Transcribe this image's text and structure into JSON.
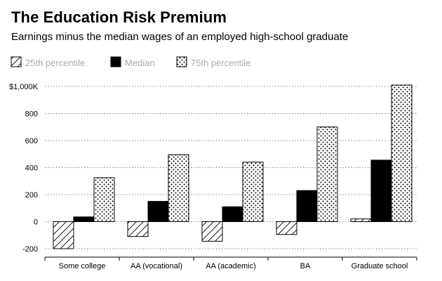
{
  "header": {
    "title": "The Education Risk Premium",
    "subtitle": "Earnings minus the median wages of an employed high-school graduate"
  },
  "chart_data": {
    "type": "bar",
    "title": "The Education Risk Premium",
    "subtitle": "Earnings minus the median wages of an employed high-school graduate",
    "categories": [
      "Some college",
      "AA (vocational)",
      "AA (academic)",
      "BA",
      "Graduate school"
    ],
    "series": [
      {
        "name": "25th percentile",
        "pattern": "hatch",
        "values": [
          -200,
          -110,
          -145,
          -95,
          20
        ]
      },
      {
        "name": "Median",
        "pattern": "solid",
        "values": [
          35,
          150,
          110,
          230,
          455
        ]
      },
      {
        "name": "75th percentile",
        "pattern": "dots",
        "values": [
          325,
          495,
          440,
          700,
          1010
        ]
      }
    ],
    "ylim": [
      -200,
      1000
    ],
    "yticks": [
      -200,
      0,
      200,
      400,
      600,
      800,
      1000
    ],
    "ytick_labels": [
      "-200",
      "0",
      "200",
      "400",
      "600",
      "800",
      "$1,000K"
    ],
    "xlabel": "",
    "ylabel": "",
    "grid": true,
    "legend_position": "top-left",
    "colors": {
      "bar_fill": "#000000",
      "pattern_bg": "#ffffff",
      "legend_text": "#aaaaaa",
      "grid": "#888888"
    }
  }
}
